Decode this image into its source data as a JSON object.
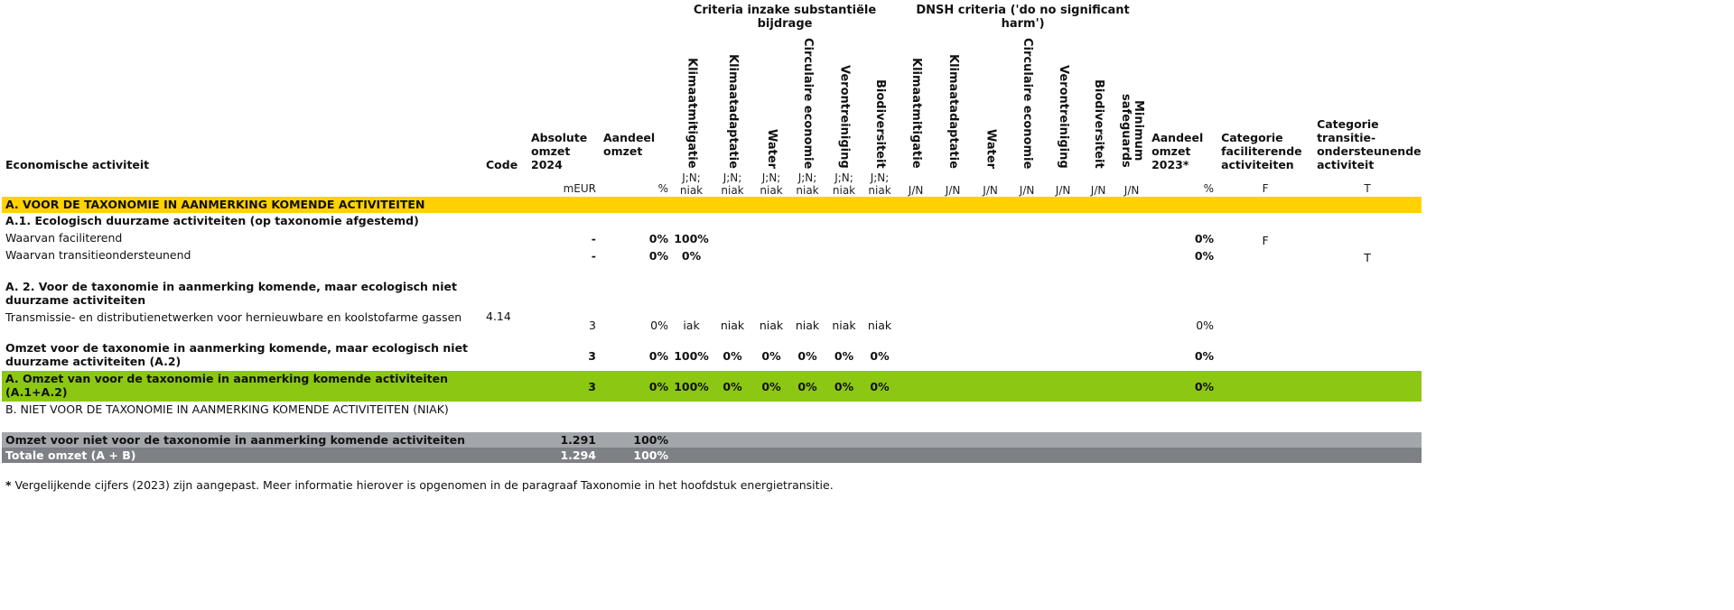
{
  "header": {
    "activity": "Economische activiteit",
    "code": "Code",
    "abs_turnover": "Absolute omzet 2024",
    "share": "Aandeel omzet",
    "sc_group": "Criteria inzake substantiële bijdrage",
    "dnsh_group": "DNSH criteria ('do no significant harm')",
    "sc_cols": [
      "Klimaatmitigatie",
      "Klimaatadaptatie",
      "Water",
      "Circulaire economie",
      "Verontreiniging",
      "Biodiversiteit"
    ],
    "dnsh_cols": [
      "Klimaatmitigatie",
      "Klimaatadaptatie",
      "Water",
      "Circulaire economie",
      "Verontreiniging",
      "Biodiversiteit",
      "Minimum safeguards"
    ],
    "share_2023": "Aandeel omzet 2023*",
    "cat_enabling": "Categorie faciliterende activiteiten",
    "cat_transitional": "Categorie transitie-ondersteunende activiteit"
  },
  "units": {
    "abs": "mEUR",
    "share": "%",
    "sc": [
      "J;N; niak",
      "J;N; niak",
      "J;N; niak",
      "J;N; niak",
      "J;N; niak",
      "J;N; niak"
    ],
    "dnsh": [
      "J/N",
      "J/N",
      "J/N",
      "J/N",
      "J/N",
      "J/N",
      "J/N"
    ],
    "share_2023": "%",
    "cat_enabling": "F",
    "cat_transitional": "T"
  },
  "rows": [
    {
      "style": "yellow",
      "label": "A. VOOR DE TAXONOMIE IN AANMERKING KOMENDE ACTIVITEITEN",
      "code": "",
      "abs": "",
      "share": "",
      "sc": [
        "",
        "",
        "",
        "",
        "",
        ""
      ],
      "dnsh": [
        "",
        "",
        "",
        "",
        "",
        "",
        ""
      ],
      "share_2023": "",
      "f": "",
      "t": ""
    },
    {
      "style": "bold",
      "label": "A.1. Ecologisch duurzame activiteiten (op taxonomie afgestemd)",
      "code": "",
      "abs": "",
      "share": "",
      "sc": [
        "",
        "",
        "",
        "",
        "",
        ""
      ],
      "dnsh": [
        "",
        "",
        "",
        "",
        "",
        "",
        ""
      ],
      "share_2023": "",
      "f": "",
      "t": ""
    },
    {
      "style": "plain-boldvals",
      "label": "Waarvan faciliterend",
      "code": "",
      "abs": "-",
      "share": "0%",
      "sc": [
        "100%",
        "",
        "",
        "",
        "",
        ""
      ],
      "dnsh": [
        "",
        "",
        "",
        "",
        "",
        "",
        ""
      ],
      "share_2023": "0%",
      "f": "F",
      "t": ""
    },
    {
      "style": "plain-boldvals",
      "label": "Waarvan transitieondersteunend",
      "code": "",
      "abs": "-",
      "share": "0%",
      "sc": [
        "0%",
        "",
        "",
        "",
        "",
        ""
      ],
      "dnsh": [
        "",
        "",
        "",
        "",
        "",
        "",
        ""
      ],
      "share_2023": "0%",
      "f": "",
      "t": "T"
    },
    {
      "style": "spacer",
      "label": "",
      "code": "",
      "abs": "",
      "share": "",
      "sc": [
        "",
        "",
        "",
        "",
        "",
        ""
      ],
      "dnsh": [
        "",
        "",
        "",
        "",
        "",
        "",
        ""
      ],
      "share_2023": "",
      "f": "",
      "t": ""
    },
    {
      "style": "bold",
      "label": "A. 2. Voor de taxonomie in aanmerking komende, maar ecologisch niet duurzame activiteiten",
      "code": "",
      "abs": "",
      "share": "",
      "sc": [
        "",
        "",
        "",
        "",
        "",
        ""
      ],
      "dnsh": [
        "",
        "",
        "",
        "",
        "",
        "",
        ""
      ],
      "share_2023": "",
      "f": "",
      "t": ""
    },
    {
      "style": "plain",
      "label": "Transmissie- en distributienetwerken voor hernieuwbare en koolstofarme gassen",
      "code": "4.14",
      "abs": "3",
      "share": "0%",
      "sc": [
        "iak",
        "niak",
        "niak",
        "niak",
        "niak",
        "niak"
      ],
      "dnsh": [
        "",
        "",
        "",
        "",
        "",
        "",
        ""
      ],
      "share_2023": "0%",
      "f": "",
      "t": ""
    },
    {
      "style": "bold",
      "label": "Omzet voor de taxonomie in aanmerking komende, maar ecologisch niet duurzame activiteiten (A.2)",
      "code": "",
      "abs": "3",
      "share": "0%",
      "sc": [
        "100%",
        "0%",
        "0%",
        "0%",
        "0%",
        "0%"
      ],
      "dnsh": [
        "",
        "",
        "",
        "",
        "",
        "",
        ""
      ],
      "share_2023": "0%",
      "f": "",
      "t": ""
    },
    {
      "style": "green",
      "label": "A. Omzet van voor de taxonomie in aanmerking komende activiteiten (A.1+A.2)",
      "code": "",
      "abs": "3",
      "share": "0%",
      "sc": [
        "100%",
        "0%",
        "0%",
        "0%",
        "0%",
        "0%"
      ],
      "dnsh": [
        "",
        "",
        "",
        "",
        "",
        "",
        ""
      ],
      "share_2023": "0%",
      "f": "",
      "t": ""
    },
    {
      "style": "plain",
      "label": "B. NIET VOOR DE TAXONOMIE IN AANMERKING KOMENDE ACTIVITEITEN (NIAK)",
      "code": "",
      "abs": "",
      "share": "",
      "sc": [
        "",
        "",
        "",
        "",
        "",
        ""
      ],
      "dnsh": [
        "",
        "",
        "",
        "",
        "",
        "",
        ""
      ],
      "share_2023": "",
      "f": "",
      "t": ""
    },
    {
      "style": "gray1",
      "label": "Omzet voor niet voor de taxonomie in aanmerking komende activiteiten",
      "code": "",
      "abs": "1.291",
      "share": "100%",
      "sc": [
        "",
        "",
        "",
        "",
        "",
        ""
      ],
      "dnsh": [
        "",
        "",
        "",
        "",
        "",
        "",
        ""
      ],
      "share_2023": "",
      "f": "",
      "t": ""
    },
    {
      "style": "gray2",
      "label": "Totale omzet (A + B)",
      "code": "",
      "abs": "1.294",
      "share": "100%",
      "sc": [
        "",
        "",
        "",
        "",
        "",
        ""
      ],
      "dnsh": [
        "",
        "",
        "",
        "",
        "",
        "",
        ""
      ],
      "share_2023": "",
      "f": "",
      "t": ""
    }
  ],
  "footnote": {
    "marker": "*",
    "text": " Vergelijkende cijfers (2023) zijn aangepast. Meer informatie hierover is opgenomen in de paragraaf Taxonomie in het hoofdstuk energietransitie."
  },
  "colors": {
    "yellow": "#ffd200",
    "green": "#8cc714",
    "gray_light": "#a3a6ab",
    "gray_dark": "#7d8084"
  }
}
